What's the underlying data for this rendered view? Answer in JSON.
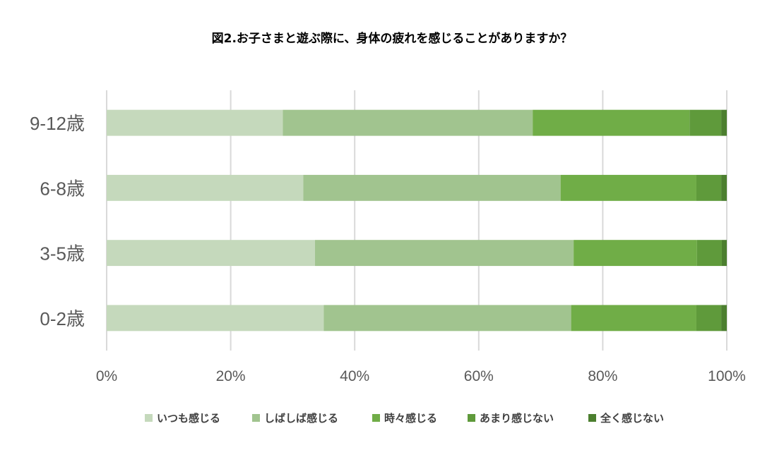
{
  "chart_data": {
    "type": "bar",
    "orientation": "horizontal",
    "stacked": "percent",
    "title": "図2.お子さまと遊ぶ際に、身体の疲れを感じることがありますか？",
    "categories": [
      "9-12歳",
      "6-8歳",
      "3-5歳",
      "0-2歳"
    ],
    "series": [
      {
        "name": "いつも感じる",
        "color": "#c5d9bc",
        "values": [
          28.4,
          31.7,
          33.6,
          35.0
        ]
      },
      {
        "name": "しばしば感じる",
        "color": "#a1c48f",
        "values": [
          40.3,
          41.5,
          41.7,
          39.9
        ]
      },
      {
        "name": "時々感じる",
        "color": "#70ad47",
        "values": [
          25.3,
          21.9,
          19.9,
          20.2
        ]
      },
      {
        "name": "あまり感じない",
        "color": "#5f9a3b",
        "values": [
          5.1,
          4.0,
          4.0,
          4.0
        ]
      },
      {
        "name": "全く感じない",
        "color": "#4c7f2f",
        "values": [
          0.9,
          0.9,
          0.8,
          0.9
        ]
      }
    ],
    "xlim": [
      0,
      100
    ],
    "x_ticks": [
      "0%",
      "20%",
      "40%",
      "60%",
      "80%",
      "100%"
    ],
    "grid": true,
    "gridline_color": "#d9d9d9",
    "legend_position": "bottom"
  }
}
